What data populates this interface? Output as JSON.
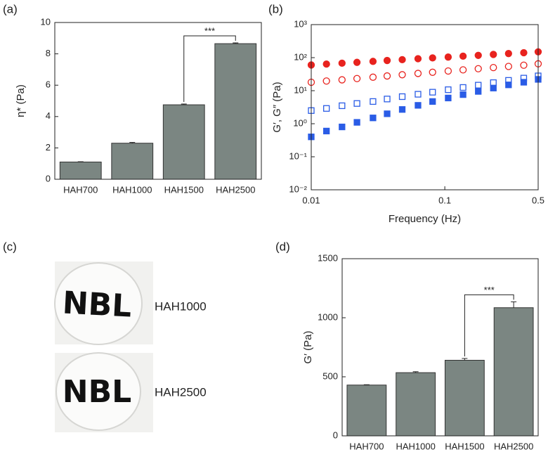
{
  "chart_data": [
    {
      "type": "bar",
      "panel_label": "(a)",
      "ylabel": "η* (Pa)",
      "categories": [
        "HAH700",
        "HAH1000",
        "HAH1500",
        "HAH2500"
      ],
      "values": [
        1.1,
        2.3,
        4.75,
        8.65
      ],
      "errors": [
        0.02,
        0.05,
        0.05,
        0.05
      ],
      "color": "#7b8682",
      "ylim": [
        0,
        10
      ],
      "yticks": [
        0,
        2,
        4,
        6,
        8,
        10
      ],
      "annotation": "***"
    },
    {
      "type": "scatter",
      "panel_label": "(b)",
      "xlabel": "Frequency (Hz)",
      "ylabel": "G′, G″ (Pa)",
      "log_x": true,
      "log_y": true,
      "x": [
        0.01,
        0.013,
        0.017,
        0.022,
        0.029,
        0.037,
        0.048,
        0.063,
        0.081,
        0.106,
        0.137,
        0.178,
        0.231,
        0.3,
        0.39,
        0.5
      ],
      "series": [
        {
          "color": "#e8231e",
          "marker": "circle",
          "filled": true,
          "values": [
            60,
            64,
            68,
            72,
            77,
            82,
            87,
            93,
            98,
            104,
            111,
            117,
            125,
            133,
            141,
            150
          ]
        },
        {
          "color": "#e8231e",
          "marker": "circle",
          "filled": false,
          "values": [
            18,
            19.6,
            21.3,
            23.3,
            25.6,
            27.9,
            30.4,
            33.3,
            36.1,
            39.4,
            42.7,
            46.3,
            50.1,
            54.2,
            59,
            65
          ]
        },
        {
          "color": "#2a5ce6",
          "marker": "square",
          "filled": false,
          "values": [
            2.5,
            2.9,
            3.5,
            4.1,
            4.7,
            5.6,
            6.6,
            7.8,
            9,
            10.7,
            12.5,
            14.7,
            17.5,
            20.5,
            24,
            28
          ]
        },
        {
          "color": "#2a5ce6",
          "marker": "square",
          "filled": true,
          "values": [
            0.4,
            0.6,
            0.8,
            1.1,
            1.5,
            2,
            2.7,
            3.6,
            4.7,
            6,
            7.6,
            9.5,
            12,
            15,
            18,
            22
          ]
        }
      ],
      "xlim": [
        0.01,
        0.5
      ],
      "xticks": [
        0.01,
        0.1,
        0.5
      ],
      "ylim": [
        0.01,
        1000
      ],
      "yticks": [
        {
          "value": 0.01,
          "label": "10⁻²"
        },
        {
          "value": 0.1,
          "label": "10⁻¹"
        },
        {
          "value": 1,
          "label": "10⁰"
        },
        {
          "value": 10,
          "label": "10¹"
        },
        {
          "value": 100,
          "label": "10²"
        },
        {
          "value": 1000,
          "label": "10³"
        }
      ]
    },
    {
      "type": "bar",
      "panel_label": "(d)",
      "ylabel": "G′ (Pa)",
      "categories": [
        "HAH700",
        "HAH1000",
        "HAH1500",
        "HAH2500"
      ],
      "values": [
        430,
        535,
        640,
        1085
      ],
      "errors": [
        3,
        8,
        15,
        50
      ],
      "color": "#7b8682",
      "ylim": [
        0,
        1500
      ],
      "yticks": [
        0,
        500,
        1000,
        1500
      ],
      "annotation": "***"
    }
  ],
  "photo_panel": {
    "panel_label": "(c)",
    "samples": [
      {
        "text": "NBL",
        "label": "HAH1000"
      },
      {
        "text": "NBL",
        "label": "HAH2500"
      }
    ]
  }
}
